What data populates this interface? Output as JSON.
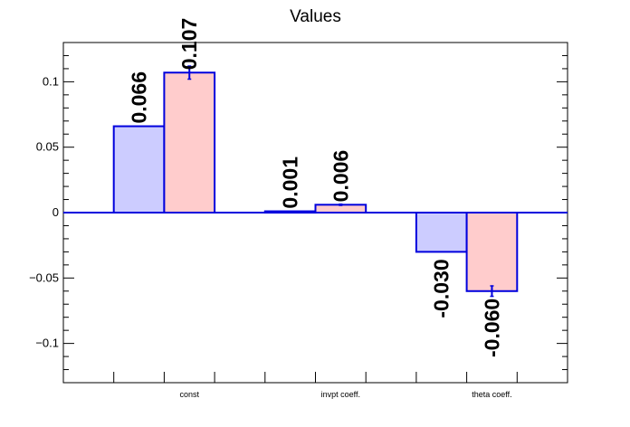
{
  "chart_data": {
    "type": "bar",
    "title": "Values",
    "xlabel": "",
    "ylabel": "",
    "categories": [
      "const",
      "invpt coeff.",
      "theta coeff."
    ],
    "series": [
      {
        "values": [
          0.066,
          0.001,
          -0.03
        ],
        "errors": [
          0.0,
          0.0,
          0.0
        ],
        "labels": [
          "0.066",
          "0.001",
          "-0.030"
        ],
        "fill": "#ccccff",
        "stroke": "#0000dd"
      },
      {
        "values": [
          0.107,
          0.006,
          -0.06
        ],
        "errors": [
          0.005,
          0.0005,
          0.004
        ],
        "labels": [
          "0.107",
          "0.006",
          "-0.060"
        ],
        "fill": "#ffcccc",
        "stroke": "#0000dd"
      }
    ],
    "ylim": [
      -0.13,
      0.13
    ],
    "yticks": [
      -0.1,
      -0.05,
      0,
      0.05,
      0.1
    ],
    "ytick_labels": [
      "−0.1",
      "−0.05",
      "0",
      "0.05",
      "0.1"
    ],
    "grid": false,
    "legend": "none"
  }
}
